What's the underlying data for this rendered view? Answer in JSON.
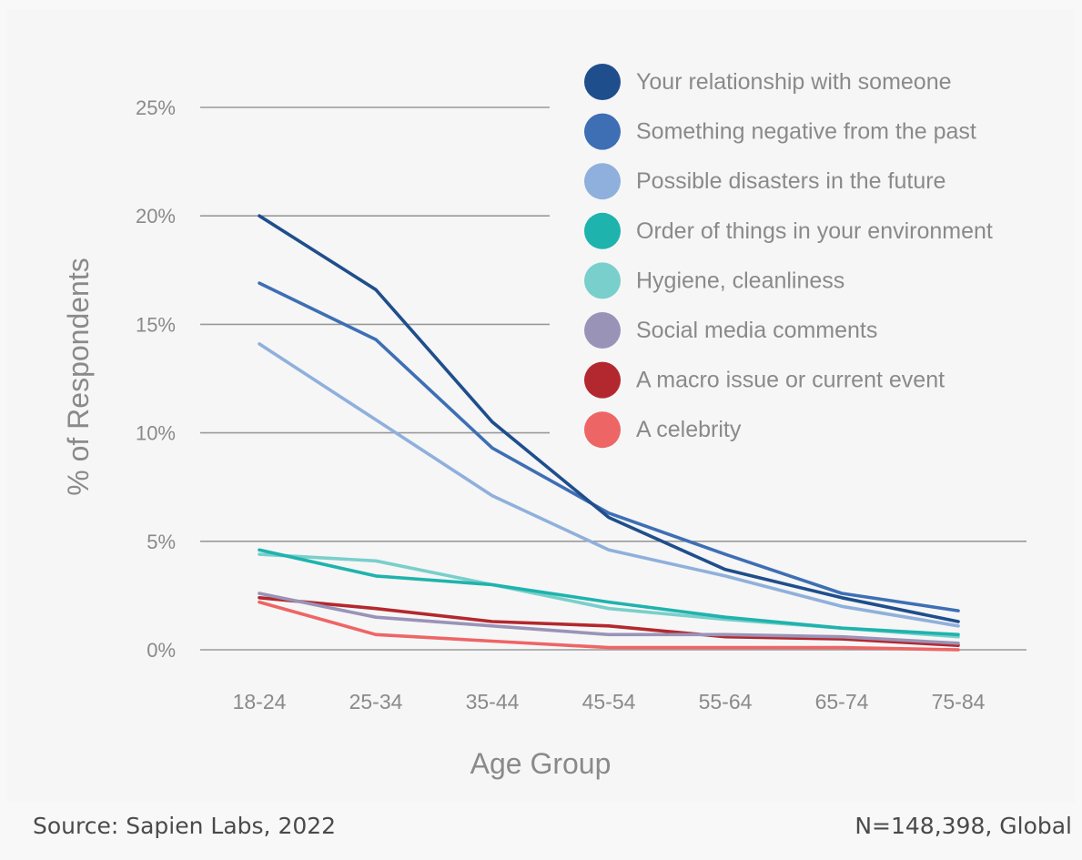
{
  "chart_data": {
    "type": "line",
    "title": "",
    "xlabel": "Age Group",
    "ylabel": "% of Respondents",
    "categories": [
      "18-24",
      "25-34",
      "35-44",
      "45-54",
      "55-64",
      "65-74",
      "75-84"
    ],
    "yticks": [
      0,
      5,
      10,
      15,
      20,
      25
    ],
    "ytick_labels": [
      "0%",
      "5%",
      "10%",
      "15%",
      "20%",
      "25%"
    ],
    "ylim": [
      0,
      25
    ],
    "grid": true,
    "legend_position": "top-right",
    "series": [
      {
        "name": "Your relationship with someone",
        "color": "#1f4e8c",
        "values": [
          20.0,
          16.6,
          10.5,
          6.1,
          3.7,
          2.4,
          1.3
        ]
      },
      {
        "name": "Something negative from the past",
        "color": "#3e6fb5",
        "values": [
          16.9,
          14.3,
          9.3,
          6.3,
          4.4,
          2.6,
          1.8
        ]
      },
      {
        "name": "Possible disasters in the future",
        "color": "#8fb0dc",
        "values": [
          14.1,
          10.6,
          7.1,
          4.6,
          3.4,
          2.0,
          1.1
        ]
      },
      {
        "name": "Order of things in your environment",
        "color": "#1fb3ad",
        "values": [
          4.6,
          3.4,
          3.0,
          2.2,
          1.5,
          1.0,
          0.7
        ]
      },
      {
        "name": "Hygiene, cleanliness",
        "color": "#79cfcb",
        "values": [
          4.4,
          4.1,
          3.0,
          1.9,
          1.4,
          1.0,
          0.6
        ]
      },
      {
        "name": "Social media comments",
        "color": "#9a93b8",
        "values": [
          2.6,
          1.5,
          1.1,
          0.7,
          0.7,
          0.6,
          0.3
        ]
      },
      {
        "name": "A macro issue or current event",
        "color": "#b3282e",
        "values": [
          2.4,
          1.9,
          1.3,
          1.1,
          0.6,
          0.5,
          0.2
        ]
      },
      {
        "name": "A celebrity",
        "color": "#ee6566",
        "values": [
          2.2,
          0.7,
          0.4,
          0.1,
          0.1,
          0.1,
          0.0
        ]
      }
    ],
    "axis_text_color": "#8a8a8a",
    "grid_color": "#9a9a9a"
  },
  "footer": {
    "source": "Source: Sapien Labs, 2022",
    "sample": "N=148,398, Global"
  }
}
